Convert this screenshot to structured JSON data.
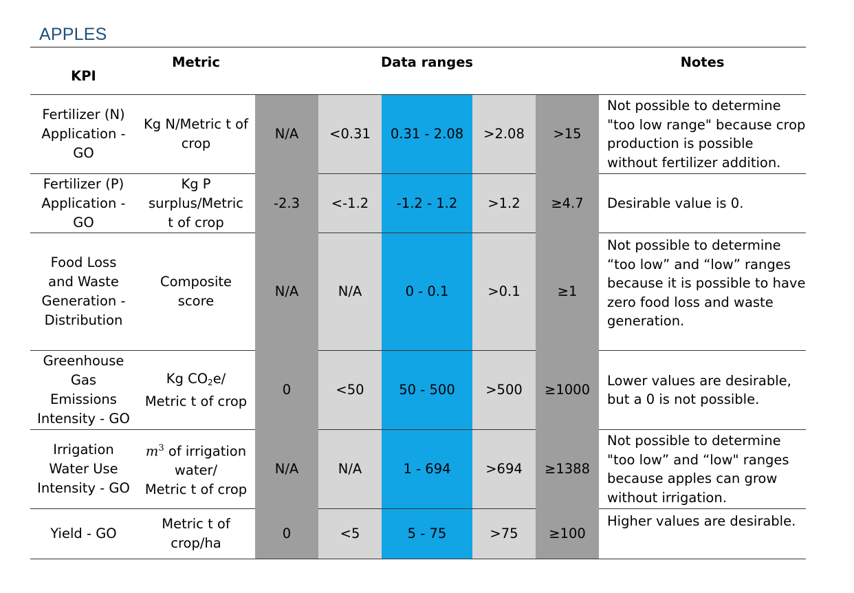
{
  "section_title": "APPLES",
  "headers": {
    "kpi": "KPI",
    "metric": "Metric",
    "data_ranges": "Data ranges",
    "notes": "Notes"
  },
  "colors": {
    "title": "#1f4e79",
    "dark_gray": "#9e9e9e",
    "light_gray": "#d6d6d6",
    "blue": "#12a5e6"
  },
  "rows": [
    {
      "kpi": [
        "Fertilizer (N)",
        "Application -",
        "GO"
      ],
      "metric": [
        "Kg N/Metric t of",
        "crop"
      ],
      "ranges": [
        "N/A",
        "<0.31",
        "0.31 - 2.08",
        ">2.08",
        ">15"
      ],
      "note": [
        "Not possible to determine",
        "\"too low range\" because crop",
        "production is possible",
        "without fertilizer addition."
      ]
    },
    {
      "kpi": [
        "Fertilizer (P)",
        "Application -",
        "GO"
      ],
      "metric": [
        "Kg P",
        "surplus/Metric",
        "t of crop"
      ],
      "ranges": [
        "-2.3",
        "<-1.2",
        "-1.2 - 1.2",
        ">1.2",
        "≥4.7"
      ],
      "note": [
        "Desirable value is 0."
      ]
    },
    {
      "kpi": [
        "Food Loss",
        "and Waste",
        "Generation -",
        "Distribution"
      ],
      "metric": [
        "Composite",
        "score"
      ],
      "ranges": [
        "N/A",
        "N/A",
        "0 - 0.1",
        ">0.1",
        "≥1"
      ],
      "note": [
        "Not possible to determine",
        "“too low” and “low” ranges",
        "because it is possible to have",
        "zero food loss and waste",
        "generation."
      ]
    },
    {
      "kpi": [
        "Greenhouse",
        "Gas",
        "Emissions",
        "Intensity - GO"
      ],
      "metric": [
        "Kg CO",
        "2",
        "e/",
        "Metric t of crop"
      ],
      "ranges": [
        "0",
        "<50",
        "50 - 500",
        ">500",
        "≥1000"
      ],
      "note": [
        "Lower values are desirable,",
        "but a 0 is not possible."
      ]
    },
    {
      "kpi": [
        "Irrigation",
        "Water Use",
        "Intensity - GO"
      ],
      "metric": [
        "m",
        "3",
        " of irrigation",
        "water/",
        "Metric t of crop"
      ],
      "ranges": [
        "N/A",
        "N/A",
        "1 - 694",
        ">694",
        "≥1388"
      ],
      "note": [
        "Not possible to determine",
        "\"too low” and “low\" ranges",
        "because apples can grow",
        "without irrigation."
      ]
    },
    {
      "kpi": [
        "Yield - GO"
      ],
      "metric": [
        "Metric t of",
        "crop/ha"
      ],
      "ranges": [
        "0",
        "<5",
        "5 - 75",
        ">75",
        "≥100"
      ],
      "note": [
        "Higher values are desirable."
      ]
    }
  ]
}
